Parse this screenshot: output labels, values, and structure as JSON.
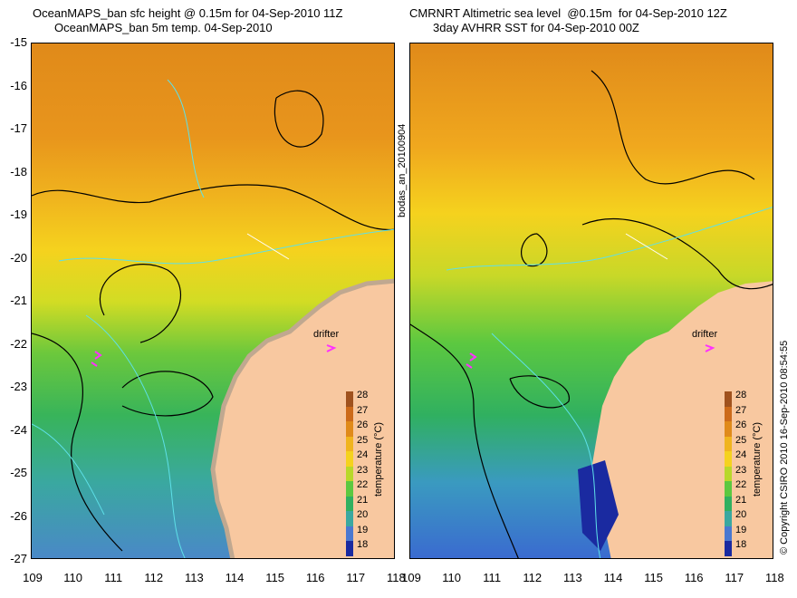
{
  "titles": {
    "left_line1": "OceanMAPS_ban sfc height @ 0.15m for 04-Sep-2010 11Z",
    "left_line2": "OceanMAPS_ban 5m temp. 04-Sep-2010",
    "right_line1": "CMRNRT Altimetric sea level  @0.15m  for 04-Sep-2010 12Z",
    "right_line2": "3day AVHRR SST for 04-Sep-2010 00Z"
  },
  "y_ticks": [
    "-15",
    "-16",
    "-17",
    "-18",
    "-19",
    "-20",
    "-21",
    "-22",
    "-23",
    "-24",
    "-25",
    "-26",
    "-27"
  ],
  "x_ticks_left": [
    "109",
    "110",
    "111",
    "112",
    "113",
    "114",
    "115",
    "116",
    "117",
    "118"
  ],
  "x_ticks_right": [
    "109",
    "110",
    "111",
    "112",
    "113",
    "114",
    "115",
    "116",
    "117",
    "118"
  ],
  "center_label": "bodas_an_20100904",
  "copyright": "© Copyright CSIRO 2010   16-Sep-2010 08:54:55",
  "drifter_label": "drifter",
  "colorbar": {
    "title": "temperature (°C)",
    "labels": [
      "28",
      "27",
      "26",
      "25",
      "24",
      "23",
      "22",
      "21",
      "20",
      "19",
      "18"
    ],
    "colors": [
      "#a0521e",
      "#cc6a1a",
      "#e08a1a",
      "#f0b41e",
      "#f5d21e",
      "#b8d82a",
      "#5cc840",
      "#30b060",
      "#3aa8a0",
      "#4a78d0",
      "#1a2aa0"
    ]
  },
  "colors": {
    "land": "#f8c8a0",
    "coast": "#c0a890",
    "contour_black": "#000000",
    "contour_cyan": "#5ee0e8",
    "drifter_marker": "#ff30ff"
  }
}
